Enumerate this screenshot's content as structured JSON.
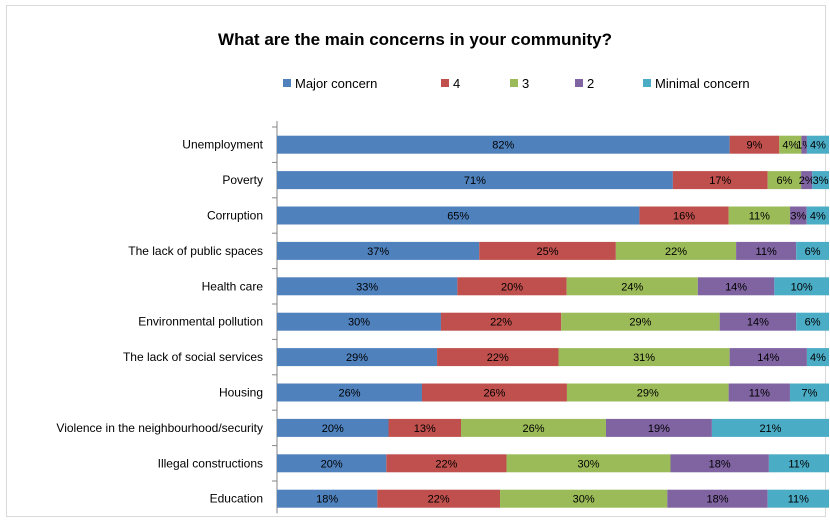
{
  "chart_data": {
    "type": "bar",
    "orientation": "horizontal",
    "stacked": "percent",
    "title": "What are the main concerns in your community?",
    "legend_position": "top",
    "xlim": [
      0,
      100
    ],
    "categories": [
      "Unemployment",
      "Poverty",
      "Corruption",
      "The lack of public spaces",
      "Health care",
      "Environmental pollution",
      "The lack of social services",
      "Housing",
      "Violence in the neighbourhood/security",
      "Illegal constructions",
      "Education"
    ],
    "series": [
      {
        "name": "Major concern",
        "color": "#4f81bd",
        "values": [
          82,
          71,
          65,
          37,
          33,
          30,
          29,
          26,
          20,
          20,
          18
        ]
      },
      {
        "name": "4",
        "color": "#c0504d",
        "values": [
          9,
          17,
          16,
          25,
          20,
          22,
          22,
          26,
          13,
          22,
          22
        ]
      },
      {
        "name": "3",
        "color": "#9bbb59",
        "values": [
          4,
          6,
          11,
          22,
          24,
          29,
          31,
          29,
          26,
          30,
          30
        ]
      },
      {
        "name": "2",
        "color": "#8064a2",
        "values": [
          1,
          2,
          3,
          11,
          14,
          14,
          14,
          11,
          19,
          18,
          18
        ]
      },
      {
        "name": "Minimal concern",
        "color": "#4bacc6",
        "values": [
          4,
          3,
          4,
          6,
          10,
          6,
          4,
          7,
          21,
          11,
          11
        ]
      }
    ],
    "data_labels": [
      [
        "82%",
        "71%",
        "65%",
        "37%",
        "33%",
        "30%",
        "29%",
        "26%",
        "20%",
        "20%",
        "18%"
      ],
      [
        "9%",
        "17%",
        "16%",
        "25%",
        "20%",
        "22%",
        "22%",
        "26%",
        "13%",
        "22%",
        "22%"
      ],
      [
        "4%",
        "6%",
        "11%",
        "22%",
        "24%",
        "29%",
        "31%",
        "29%",
        "26%",
        "30%",
        "30%"
      ],
      [
        "1%",
        "2%",
        "3%",
        "11%",
        "14%",
        "14%",
        "14%",
        "11%",
        "19%",
        "18%",
        "18%"
      ],
      [
        "4%",
        "3%",
        "4%",
        "6%",
        "10%",
        "6%",
        "4%",
        "7%",
        "21%",
        "11%",
        "11%"
      ]
    ]
  }
}
